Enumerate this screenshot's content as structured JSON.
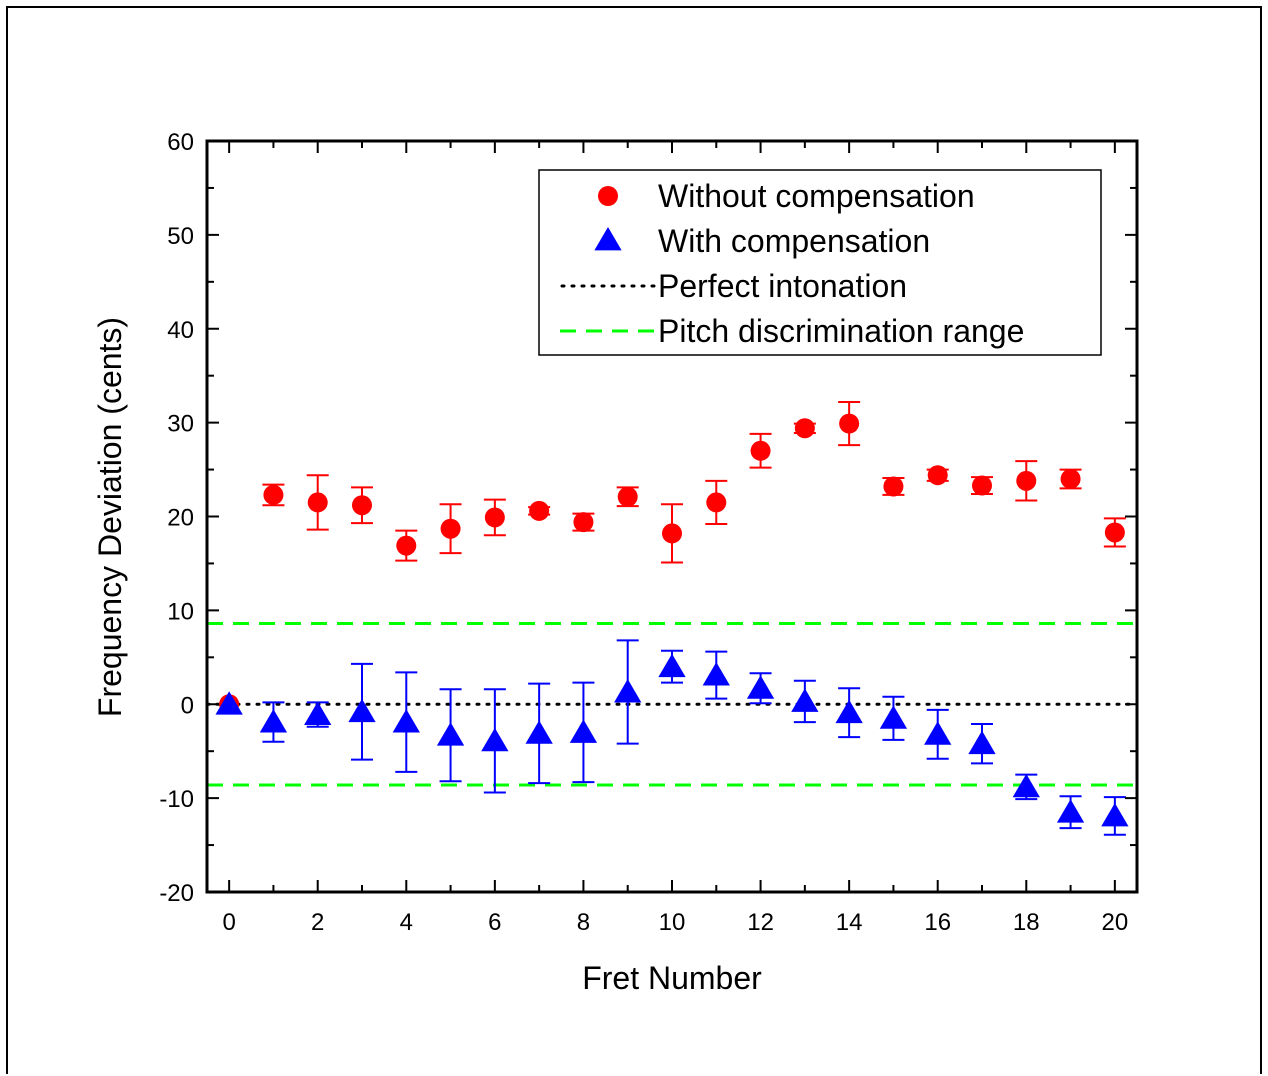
{
  "chart_data": {
    "type": "scatter",
    "title": "",
    "xlabel": "Fret Number",
    "ylabel": "Frequency Deviation (cents)",
    "xlim": [
      -0.5,
      20.5
    ],
    "ylim": [
      -20,
      60
    ],
    "xticks": [
      0,
      2,
      4,
      6,
      8,
      10,
      12,
      14,
      16,
      18,
      20
    ],
    "yticks": [
      -20,
      -10,
      0,
      10,
      20,
      30,
      40,
      50,
      60
    ],
    "grid": false,
    "legend_position": "top-right",
    "series": [
      {
        "name": "Without compensation",
        "marker": "circle",
        "color": "#ff0000",
        "x": [
          0,
          1,
          2,
          3,
          4,
          5,
          6,
          7,
          8,
          9,
          10,
          11,
          12,
          13,
          14,
          15,
          16,
          17,
          18,
          19,
          20
        ],
        "y": [
          0,
          22.3,
          21.5,
          21.2,
          16.9,
          18.7,
          19.9,
          20.6,
          19.4,
          22.1,
          18.2,
          21.5,
          27.0,
          29.4,
          29.9,
          23.2,
          24.4,
          23.3,
          23.8,
          24.0,
          18.3
        ],
        "err": [
          0,
          1.1,
          2.9,
          1.9,
          1.6,
          2.6,
          1.9,
          0.4,
          0.9,
          1.0,
          3.1,
          2.3,
          1.8,
          0.5,
          2.3,
          0.9,
          0.6,
          0.9,
          2.1,
          1.0,
          1.5
        ]
      },
      {
        "name": "With compensation",
        "marker": "triangle",
        "color": "#0000ff",
        "x": [
          0,
          1,
          2,
          3,
          4,
          5,
          6,
          7,
          8,
          9,
          10,
          11,
          12,
          13,
          14,
          15,
          16,
          17,
          18,
          19,
          20
        ],
        "y": [
          0,
          -1.9,
          -1.1,
          -0.8,
          -1.9,
          -3.3,
          -3.9,
          -3.1,
          -3.0,
          1.3,
          4.0,
          3.1,
          1.7,
          0.3,
          -0.9,
          -1.5,
          -3.2,
          -4.2,
          -8.8,
          -11.5,
          -11.9
        ],
        "err": [
          0,
          2.1,
          1.3,
          5.1,
          5.3,
          4.9,
          5.5,
          5.3,
          5.3,
          5.5,
          1.7,
          2.5,
          1.6,
          2.2,
          2.6,
          2.3,
          2.6,
          2.1,
          1.3,
          1.7,
          2.0
        ]
      },
      {
        "name": "Perfect intonation",
        "style": "dotted",
        "color": "#000000",
        "y": 0
      },
      {
        "name": "Pitch discrimination range",
        "style": "dashed",
        "color": "#00ff00",
        "y": [
          8.6,
          -8.6
        ]
      }
    ]
  }
}
